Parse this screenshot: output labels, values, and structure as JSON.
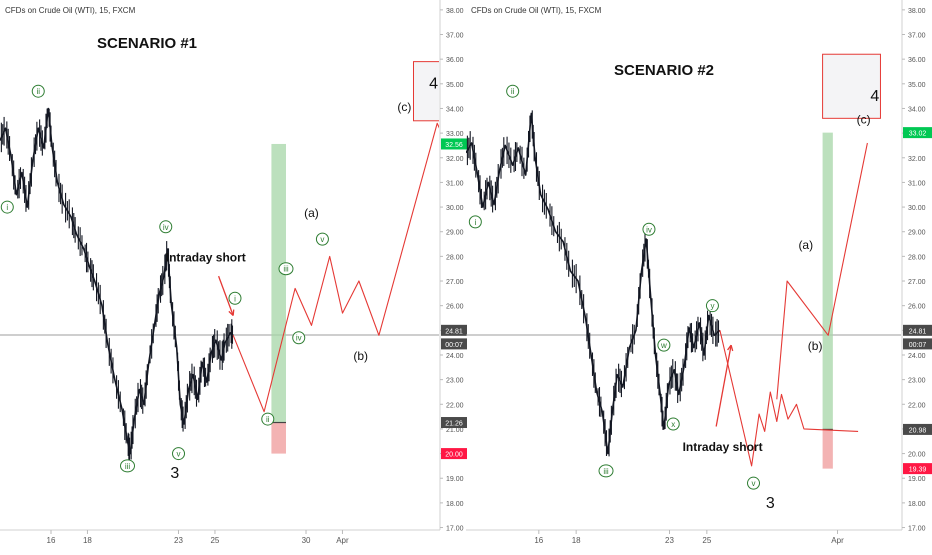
{
  "colors": {
    "price": "#131722",
    "projection": "#e53935",
    "wave_label": "#2e7d32",
    "target_fill": "#a5d6a7",
    "stop_fill": "#ef9a9a",
    "price_line": "#9e9e9e",
    "axis_text": "#555555",
    "badge_dark": "#4a4a4a",
    "badge_red": "#ff1744",
    "badge_green": "#00c853"
  },
  "chart_data": [
    {
      "type": "line",
      "title": "SCENARIO #1",
      "symbol": "CFDs on Crude Oil (WTI), 15, FXCM",
      "y_axis_ticks": [
        "38.00",
        "37.00",
        "36.00",
        "35.00",
        "34.00",
        "33.00",
        "32.00",
        "31.00",
        "30.00",
        "29.00",
        "28.00",
        "27.00",
        "26.00",
        "25.00",
        "24.00",
        "23.00",
        "22.00",
        "21.00",
        "20.00",
        "19.00",
        "18.00",
        "17.00"
      ],
      "ylim": [
        17,
        38
      ],
      "x_axis_ticks": [
        {
          "label": "16",
          "t": 16
        },
        {
          "label": "18",
          "t": 18
        },
        {
          "label": "23",
          "t": 23
        },
        {
          "label": "25",
          "t": 25
        },
        {
          "label": "30",
          "t": 30
        },
        {
          "label": "Apr",
          "t": 32
        }
      ],
      "xlim": [
        13.2,
        37.3
      ],
      "price_series": {
        "name": "",
        "points": [
          [
            13.2,
            32.7
          ],
          [
            13.5,
            33.2
          ],
          [
            13.8,
            32.1
          ],
          [
            14.1,
            30.5
          ],
          [
            14.4,
            31.4
          ],
          [
            14.7,
            30.0
          ],
          [
            15.0,
            31.9
          ],
          [
            15.3,
            33.2
          ],
          [
            15.6,
            32.4
          ],
          [
            15.85,
            34.0
          ],
          [
            16.05,
            32.5
          ],
          [
            16.35,
            31.0
          ],
          [
            16.7,
            30.1
          ],
          [
            17.1,
            29.6
          ],
          [
            17.4,
            28.9
          ],
          [
            17.8,
            28.3
          ],
          [
            18.1,
            27.6
          ],
          [
            18.4,
            27.0
          ],
          [
            18.8,
            26.0
          ],
          [
            19.1,
            24.5
          ],
          [
            19.5,
            23.0
          ],
          [
            19.9,
            21.8
          ],
          [
            20.2,
            20.5
          ],
          [
            20.35,
            20.0
          ],
          [
            20.55,
            21.3
          ],
          [
            20.85,
            22.6
          ],
          [
            21.1,
            22.0
          ],
          [
            21.35,
            23.6
          ],
          [
            21.7,
            25.3
          ],
          [
            21.95,
            26.5
          ],
          [
            22.2,
            27.2
          ],
          [
            22.4,
            28.3
          ],
          [
            22.6,
            26.1
          ],
          [
            22.9,
            24.3
          ],
          [
            23.1,
            22.0
          ],
          [
            23.3,
            21.2
          ],
          [
            23.55,
            22.6
          ],
          [
            23.8,
            23.2
          ],
          [
            24.05,
            22.2
          ],
          [
            24.3,
            23.7
          ],
          [
            24.55,
            22.9
          ],
          [
            24.8,
            24.1
          ],
          [
            25.05,
            24.6
          ],
          [
            25.35,
            23.8
          ],
          [
            25.55,
            24.5
          ],
          [
            25.85,
            24.9
          ],
          [
            26.0,
            24.8
          ]
        ]
      },
      "projection": {
        "name": "",
        "points": [
          [
            26.0,
            24.8
          ],
          [
            27.7,
            21.7
          ],
          [
            29.4,
            26.7
          ],
          [
            30.3,
            25.2
          ],
          [
            31.3,
            28.0
          ],
          [
            32.0,
            25.7
          ],
          [
            32.9,
            27.0
          ],
          [
            34.0,
            24.8
          ],
          [
            37.2,
            33.4
          ],
          [
            39.4,
            29.9
          ]
        ]
      },
      "current_price_line": 24.81,
      "target_band": [
        21.26,
        32.56,
        28.1,
        28.9
      ],
      "stop_band": [
        20.0,
        21.26,
        28.1,
        28.9
      ],
      "target_box": [
        33.5,
        35.9,
        35.9,
        39.7
      ],
      "price_badges": [
        {
          "label": "32.56",
          "value": 32.56,
          "color": "green"
        },
        {
          "label": "24.81",
          "value": 25.0,
          "color": "dark"
        },
        {
          "label": "00:07",
          "value": 24.45,
          "color": "dark"
        },
        {
          "label": "21.26",
          "value": 21.26,
          "color": "dark"
        },
        {
          "label": "20.00",
          "value": 20.0,
          "color": "red"
        }
      ],
      "wave_labels": [
        {
          "label": "i",
          "t": 13.6,
          "v": 30.0
        },
        {
          "label": "ii",
          "t": 15.3,
          "v": 34.7
        },
        {
          "label": "iii",
          "t": 20.2,
          "v": 19.5
        },
        {
          "label": "iv",
          "t": 22.3,
          "v": 29.2
        },
        {
          "label": "v",
          "t": 23.0,
          "v": 20.0
        },
        {
          "label": "i",
          "t": 26.1,
          "v": 26.3
        },
        {
          "label": "ii",
          "t": 27.9,
          "v": 21.4
        },
        {
          "label": "iii",
          "t": 28.9,
          "v": 27.5
        },
        {
          "label": "iv",
          "t": 29.6,
          "v": 24.7
        },
        {
          "label": "v",
          "t": 30.9,
          "v": 28.7
        }
      ],
      "text_annotations": [
        {
          "label": "(a)",
          "t": 30.3,
          "v": 29.6,
          "size": 12
        },
        {
          "label": "(b)",
          "t": 33.0,
          "v": 23.8,
          "size": 12
        },
        {
          "label": "(c)",
          "t": 35.4,
          "v": 33.9,
          "size": 12
        },
        {
          "label": "4",
          "t": 37.0,
          "v": 34.8,
          "size": 16
        },
        {
          "label": "3",
          "t": 22.8,
          "v": 19.0,
          "size": 16
        }
      ],
      "callout": {
        "label": "Intraday short",
        "t": 22.3,
        "v": 27.8,
        "arrow": [
          [
            25.2,
            27.2
          ],
          [
            26.0,
            25.6
          ]
        ]
      }
    },
    {
      "type": "line",
      "title": "SCENARIO #2",
      "symbol": "CFDs on Crude Oil (WTI), 15, FXCM",
      "y_axis_ticks": [
        "38.00",
        "37.00",
        "36.00",
        "35.00",
        "34.00",
        "33.00",
        "32.00",
        "31.00",
        "30.00",
        "29.00",
        "28.00",
        "27.00",
        "26.00",
        "25.00",
        "24.00",
        "23.00",
        "22.00",
        "21.00",
        "20.00",
        "19.00",
        "18.00",
        "17.00"
      ],
      "ylim": [
        17,
        38
      ],
      "x_axis_ticks": [
        {
          "label": "16",
          "t": 16
        },
        {
          "label": "18",
          "t": 18
        },
        {
          "label": "23",
          "t": 23
        },
        {
          "label": "25",
          "t": 25
        },
        {
          "label": "Apr",
          "t": 32
        }
      ],
      "xlim": [
        12.1,
        35.4
      ],
      "price_series": {
        "name": "",
        "points": [
          [
            12.1,
            32.2
          ],
          [
            12.4,
            32.6
          ],
          [
            12.7,
            31.4
          ],
          [
            13.0,
            30.0
          ],
          [
            13.3,
            31.0
          ],
          [
            13.6,
            30.1
          ],
          [
            13.9,
            31.5
          ],
          [
            14.2,
            32.5
          ],
          [
            14.6,
            31.7
          ],
          [
            14.9,
            32.4
          ],
          [
            15.3,
            31.3
          ],
          [
            15.6,
            33.8
          ],
          [
            15.8,
            32.0
          ],
          [
            16.1,
            30.5
          ],
          [
            16.5,
            29.9
          ],
          [
            16.9,
            29.0
          ],
          [
            17.3,
            28.6
          ],
          [
            17.7,
            27.4
          ],
          [
            18.1,
            27.0
          ],
          [
            18.5,
            25.5
          ],
          [
            18.8,
            24.0
          ],
          [
            19.1,
            22.5
          ],
          [
            19.4,
            21.7
          ],
          [
            19.7,
            20.0
          ],
          [
            19.95,
            21.8
          ],
          [
            20.2,
            23.2
          ],
          [
            20.5,
            22.7
          ],
          [
            20.85,
            24.3
          ],
          [
            21.2,
            25.0
          ],
          [
            21.5,
            27.4
          ],
          [
            21.75,
            28.7
          ],
          [
            22.0,
            26.3
          ],
          [
            22.25,
            24.0
          ],
          [
            22.5,
            22.4
          ],
          [
            22.7,
            21.0
          ],
          [
            22.95,
            22.8
          ],
          [
            23.25,
            23.4
          ],
          [
            23.5,
            22.4
          ],
          [
            23.8,
            23.6
          ],
          [
            24.05,
            25.1
          ],
          [
            24.3,
            24.3
          ],
          [
            24.6,
            25.3
          ],
          [
            24.85,
            24.0
          ],
          [
            25.1,
            25.6
          ],
          [
            25.4,
            24.8
          ],
          [
            25.7,
            25.0
          ]
        ]
      },
      "projection": {
        "name": "",
        "points": [
          [
            25.7,
            25.0
          ],
          [
            27.4,
            19.5
          ],
          [
            27.8,
            21.6
          ],
          [
            28.1,
            20.9
          ],
          [
            28.4,
            22.5
          ],
          [
            28.75,
            21.3
          ],
          [
            29.0,
            22.4
          ],
          [
            29.35,
            21.4
          ],
          [
            29.8,
            22.0
          ],
          [
            30.2,
            21.0
          ],
          [
            33.1,
            20.9
          ]
        ]
      },
      "projection_b": {
        "name": "",
        "points": [
          [
            28.75,
            22.2
          ],
          [
            29.3,
            27.0
          ],
          [
            31.5,
            24.8
          ],
          [
            33.6,
            32.6
          ]
        ]
      },
      "current_price_line": 24.81,
      "target_band": [
        20.98,
        33.02,
        31.2,
        31.75
      ],
      "stop_band": [
        19.39,
        20.98,
        31.2,
        31.75
      ],
      "target_box": [
        33.6,
        36.2,
        31.2,
        34.3
      ],
      "price_badges": [
        {
          "label": "33.02",
          "value": 33.02,
          "color": "green"
        },
        {
          "label": "24.81",
          "value": 25.0,
          "color": "dark"
        },
        {
          "label": "00:07",
          "value": 24.45,
          "color": "dark"
        },
        {
          "label": "20.98",
          "value": 20.98,
          "color": "dark"
        },
        {
          "label": "19.39",
          "value": 19.39,
          "color": "red"
        }
      ],
      "wave_labels": [
        {
          "label": "i",
          "t": 12.6,
          "v": 29.4
        },
        {
          "label": "ii",
          "t": 14.6,
          "v": 34.7
        },
        {
          "label": "iii",
          "t": 19.6,
          "v": 19.3
        },
        {
          "label": "iv",
          "t": 21.9,
          "v": 29.1
        },
        {
          "label": "w",
          "t": 22.7,
          "v": 24.4
        },
        {
          "label": "x",
          "t": 23.2,
          "v": 21.2
        },
        {
          "label": "y",
          "t": 25.3,
          "v": 26.0
        },
        {
          "label": "v",
          "t": 27.5,
          "v": 18.8
        }
      ],
      "text_annotations": [
        {
          "label": "(a)",
          "t": 30.3,
          "v": 28.3,
          "size": 12
        },
        {
          "label": "(b)",
          "t": 30.8,
          "v": 24.2,
          "size": 12
        },
        {
          "label": "(c)",
          "t": 33.4,
          "v": 33.4,
          "size": 12
        },
        {
          "label": "4",
          "t": 34.0,
          "v": 34.3,
          "size": 16
        },
        {
          "label": "3",
          "t": 28.4,
          "v": 17.8,
          "size": 16
        }
      ],
      "callout": {
        "label": "Intraday short",
        "t": 23.7,
        "v": 20.1,
        "arrow": [
          [
            25.5,
            21.1
          ],
          [
            26.3,
            24.4
          ]
        ]
      }
    }
  ]
}
